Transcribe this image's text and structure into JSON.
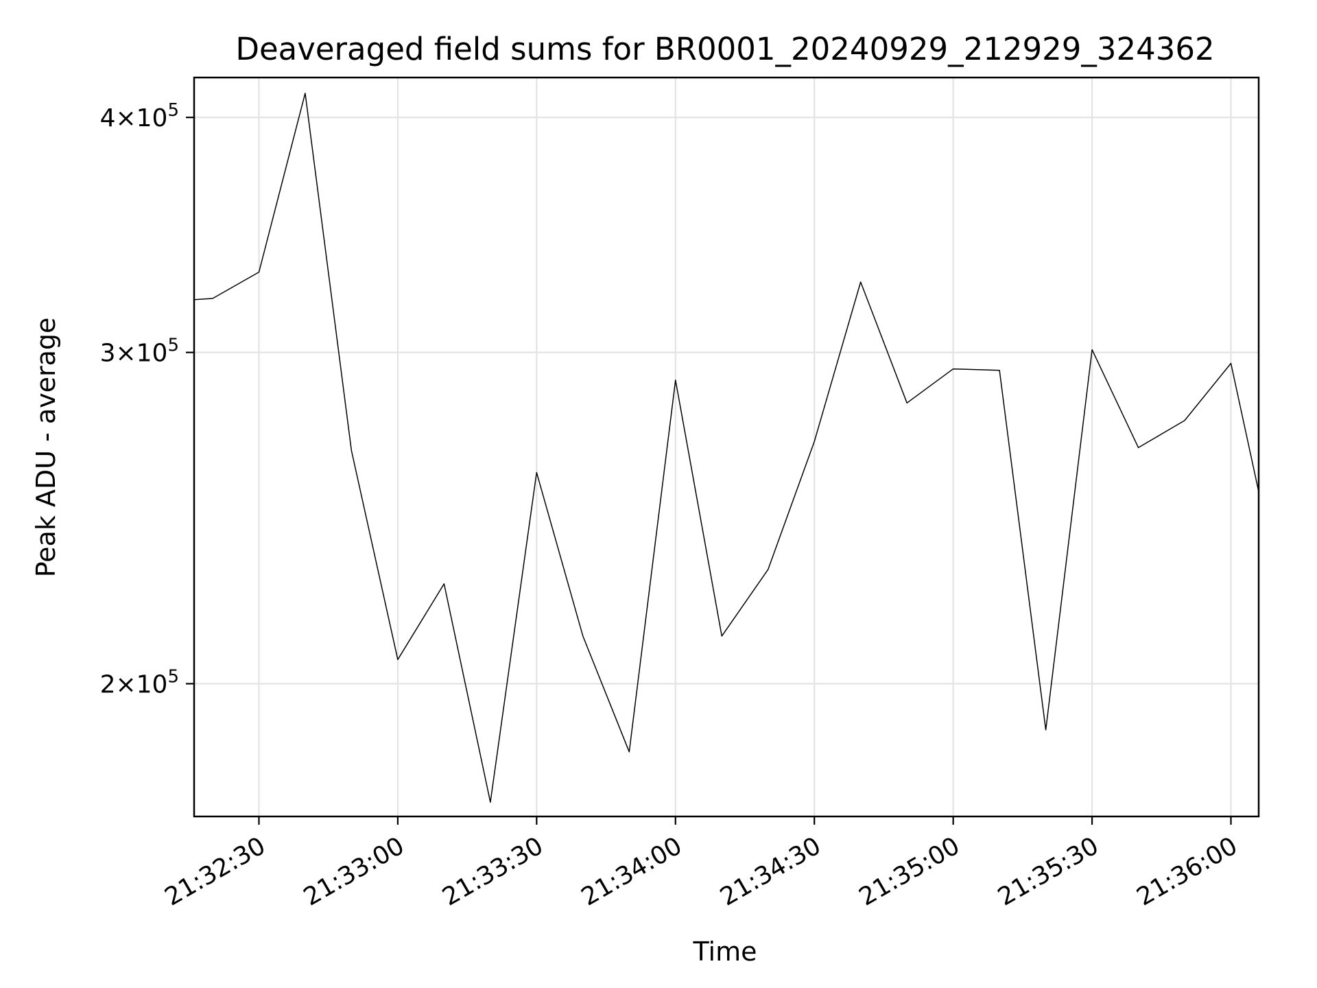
{
  "chart_data": {
    "type": "line",
    "title": "Deaveraged field sums for BR0001_20240929_212929_324362",
    "xlabel": "Time",
    "ylabel": "Peak ADU - average",
    "xlim": [
      "21:32:16",
      "21:36:06"
    ],
    "ylim": [
      170000,
      420000
    ],
    "yscale": "log",
    "grid": true,
    "x_ticks": [
      "21:32:30",
      "21:33:00",
      "21:33:30",
      "21:34:00",
      "21:34:30",
      "21:35:00",
      "21:35:30",
      "21:36:00"
    ],
    "y_ticks": [
      {
        "value": 200000,
        "mantissa": "2",
        "exponent": "5"
      },
      {
        "value": 300000,
        "mantissa": "3",
        "exponent": "5"
      },
      {
        "value": 400000,
        "mantissa": "4",
        "exponent": "5"
      }
    ],
    "series": [
      {
        "color": "#000000",
        "x": [
          "21:32:16",
          "21:32:20",
          "21:32:30",
          "21:32:40",
          "21:32:50",
          "21:33:00",
          "21:33:10",
          "21:33:20",
          "21:33:30",
          "21:33:40",
          "21:33:50",
          "21:34:00",
          "21:34:10",
          "21:34:20",
          "21:34:30",
          "21:34:40",
          "21:34:50",
          "21:35:00",
          "21:35:10",
          "21:35:20",
          "21:35:30",
          "21:35:40",
          "21:35:50",
          "21:36:00",
          "21:36:06"
        ],
        "values": [
          320000,
          320500,
          331000,
          412000,
          266000,
          206000,
          226000,
          173000,
          259000,
          212000,
          184000,
          290000,
          212000,
          230000,
          269000,
          327000,
          282000,
          294000,
          293500,
          189000,
          301000,
          267000,
          276000,
          296000,
          253000
        ]
      }
    ]
  }
}
